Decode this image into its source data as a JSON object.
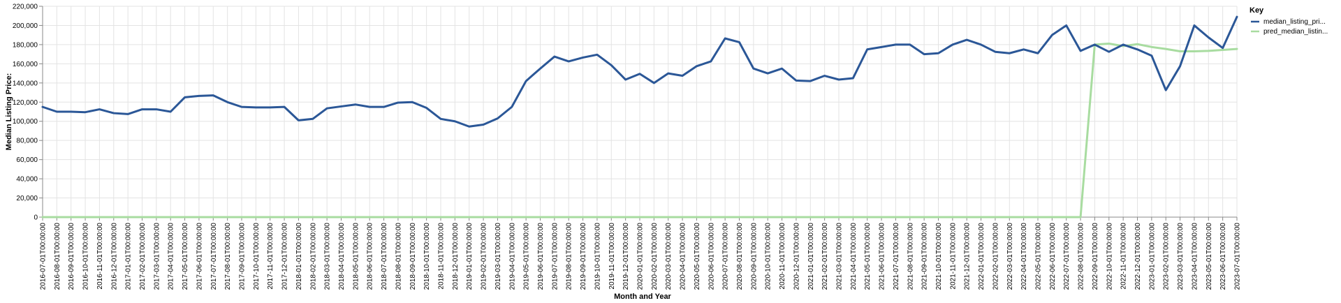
{
  "chart_data": {
    "type": "line",
    "xlabel": "Month and Year",
    "ylabel": "Median Listing Price:",
    "ylim": [
      0,
      220000
    ],
    "y_ticks": [
      0,
      20000,
      40000,
      60000,
      80000,
      100000,
      120000,
      140000,
      160000,
      180000,
      200000,
      220000
    ],
    "y_tick_labels": [
      "0",
      "20,000",
      "40,000",
      "60,000",
      "80,000",
      "100,000",
      "120,000",
      "140,000",
      "160,000",
      "180,000",
      "200,000",
      "220,000"
    ],
    "grid": true,
    "legend": {
      "title": "Key",
      "placement": "top-right"
    },
    "x": [
      "2016-07-01T00:00:00",
      "2016-08-01T00:00:00",
      "2016-09-01T00:00:00",
      "2016-10-01T00:00:00",
      "2016-11-01T00:00:00",
      "2016-12-01T00:00:00",
      "2017-01-01T00:00:00",
      "2017-02-01T00:00:00",
      "2017-03-01T00:00:00",
      "2017-04-01T00:00:00",
      "2017-05-01T00:00:00",
      "2017-06-01T00:00:00",
      "2017-07-01T00:00:00",
      "2017-08-01T00:00:00",
      "2017-09-01T00:00:00",
      "2017-10-01T00:00:00",
      "2017-11-01T00:00:00",
      "2017-12-01T00:00:00",
      "2018-01-01T00:00:00",
      "2018-02-01T00:00:00",
      "2018-03-01T00:00:00",
      "2018-04-01T00:00:00",
      "2018-05-01T00:00:00",
      "2018-06-01T00:00:00",
      "2018-07-01T00:00:00",
      "2018-08-01T00:00:00",
      "2018-09-01T00:00:00",
      "2018-10-01T00:00:00",
      "2018-11-01T00:00:00",
      "2018-12-01T00:00:00",
      "2019-01-01T00:00:00",
      "2019-02-01T00:00:00",
      "2019-03-01T00:00:00",
      "2019-04-01T00:00:00",
      "2019-05-01T00:00:00",
      "2019-06-01T00:00:00",
      "2019-07-01T00:00:00",
      "2019-08-01T00:00:00",
      "2019-09-01T00:00:00",
      "2019-10-01T00:00:00",
      "2019-11-01T00:00:00",
      "2019-12-01T00:00:00",
      "2020-01-01T00:00:00",
      "2020-02-01T00:00:00",
      "2020-03-01T00:00:00",
      "2020-04-01T00:00:00",
      "2020-05-01T00:00:00",
      "2020-06-01T00:00:00",
      "2020-07-01T00:00:00",
      "2020-08-01T00:00:00",
      "2020-09-01T00:00:00",
      "2020-10-01T00:00:00",
      "2020-11-01T00:00:00",
      "2020-12-01T00:00:00",
      "2021-01-01T00:00:00",
      "2021-02-01T00:00:00",
      "2021-03-01T00:00:00",
      "2021-04-01T00:00:00",
      "2021-05-01T00:00:00",
      "2021-06-01T00:00:00",
      "2021-07-01T00:00:00",
      "2021-08-01T00:00:00",
      "2021-09-01T00:00:00",
      "2021-10-01T00:00:00",
      "2021-11-01T00:00:00",
      "2021-12-01T00:00:00",
      "2022-01-01T00:00:00",
      "2022-02-01T00:00:00",
      "2022-03-01T00:00:00",
      "2022-04-01T00:00:00",
      "2022-05-01T00:00:00",
      "2022-06-01T00:00:00",
      "2022-07-01T00:00:00",
      "2022-08-01T00:00:00",
      "2022-09-01T00:00:00",
      "2022-10-01T00:00:00",
      "2022-11-01T00:00:00",
      "2022-12-01T00:00:00",
      "2023-01-01T00:00:00",
      "2023-02-01T00:00:00",
      "2023-03-01T00:00:00",
      "2023-04-01T00:00:00",
      "2023-05-01T00:00:00",
      "2023-06-01T00:00:00",
      "2023-07-01T00:00:00"
    ],
    "series": [
      {
        "name": "median_listing_pri...",
        "color": "#2b5797",
        "values": [
          115000,
          110000,
          110000,
          109500,
          112500,
          108500,
          107500,
          112500,
          112500,
          110000,
          125000,
          126500,
          127000,
          120000,
          115000,
          114500,
          114500,
          115000,
          101000,
          102500,
          113500,
          115500,
          117500,
          115000,
          115000,
          119500,
          120000,
          114000,
          102500,
          100000,
          94500,
          96500,
          103000,
          115000,
          142000,
          155000,
          167500,
          162500,
          166500,
          169500,
          158500,
          143500,
          149500,
          140000,
          150000,
          147500,
          157500,
          162500,
          186500,
          182500,
          155000,
          150000,
          155000,
          142500,
          142000,
          147500,
          143500,
          145000,
          175000,
          177500,
          180000,
          180000,
          170000,
          171000,
          180000,
          185000,
          180000,
          172500,
          171000,
          175000,
          171000,
          190000,
          200000,
          173500,
          180000,
          172500,
          180000,
          175000,
          168500,
          132500,
          157500,
          200000,
          187500,
          176500,
          209000
        ]
      },
      {
        "name": "pred_median_listin...",
        "color": "#a8dca0",
        "values": [
          0,
          0,
          0,
          0,
          0,
          0,
          0,
          0,
          0,
          0,
          0,
          0,
          0,
          0,
          0,
          0,
          0,
          0,
          0,
          0,
          0,
          0,
          0,
          0,
          0,
          0,
          0,
          0,
          0,
          0,
          0,
          0,
          0,
          0,
          0,
          0,
          0,
          0,
          0,
          0,
          0,
          0,
          0,
          0,
          0,
          0,
          0,
          0,
          0,
          0,
          0,
          0,
          0,
          0,
          0,
          0,
          0,
          0,
          0,
          0,
          0,
          0,
          0,
          0,
          0,
          0,
          0,
          0,
          0,
          0,
          0,
          0,
          0,
          0,
          180000,
          181000,
          178500,
          180500,
          177500,
          175500,
          173000,
          173000,
          173500,
          174500,
          175500
        ]
      }
    ]
  }
}
